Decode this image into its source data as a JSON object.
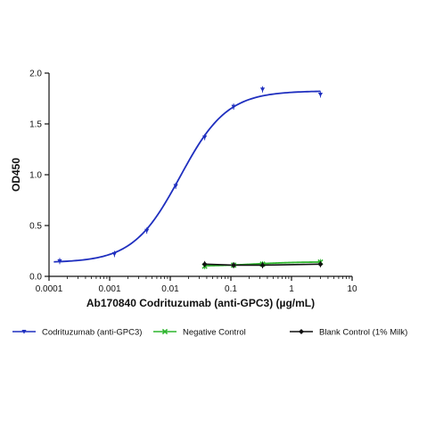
{
  "chart_data": {
    "type": "line",
    "xlabel": "Ab170840 Codrituzumab (anti-GPC3) (µg/mL)",
    "ylabel": "OD450",
    "x_scale": "log",
    "xlim": [
      0.0001,
      10
    ],
    "ylim": [
      0.0,
      2.0
    ],
    "x_ticks": [
      "0.0001",
      "0.001",
      "0.01",
      "0.1",
      "1",
      "10"
    ],
    "y_ticks": [
      "0.0",
      "0.5",
      "1.0",
      "1.5",
      "2.0"
    ],
    "grid": false,
    "legend_position": "bottom",
    "series": [
      {
        "name": "Codrituzumab (anti-GPC3)",
        "color": "#1f2fbf",
        "marker": "triangle-down",
        "points": [
          {
            "x": 0.00015,
            "y": 0.15
          },
          {
            "x": 0.0012,
            "y": 0.22
          },
          {
            "x": 0.0041,
            "y": 0.45
          },
          {
            "x": 0.0123,
            "y": 0.89
          },
          {
            "x": 0.037,
            "y": 1.37
          },
          {
            "x": 0.111,
            "y": 1.67
          },
          {
            "x": 0.333,
            "y": 1.84
          },
          {
            "x": 3.0,
            "y": 1.79
          }
        ],
        "fit": {
          "bottom": 0.135,
          "top": 1.825,
          "ec50": 0.0145,
          "hill": 1.12,
          "x_from": 0.00012,
          "x_to": 3.0
        }
      },
      {
        "name": "Negative Control",
        "color": "#2db52d",
        "marker": "x",
        "points": [
          {
            "x": 0.037,
            "y": 0.1
          },
          {
            "x": 0.111,
            "y": 0.11
          },
          {
            "x": 0.333,
            "y": 0.12
          },
          {
            "x": 3.0,
            "y": 0.14
          }
        ],
        "fit": {
          "bottom": 0.1,
          "top": 0.143,
          "ec50": 0.25,
          "hill": 1.2,
          "x_from": 0.037,
          "x_to": 3.0
        }
      },
      {
        "name": "Blank Control (1% Milk)",
        "color": "#111111",
        "marker": "diamond",
        "points": [
          {
            "x": 0.037,
            "y": 0.12
          },
          {
            "x": 0.111,
            "y": 0.11
          },
          {
            "x": 0.333,
            "y": 0.11
          },
          {
            "x": 3.0,
            "y": 0.12
          }
        ]
      }
    ]
  }
}
